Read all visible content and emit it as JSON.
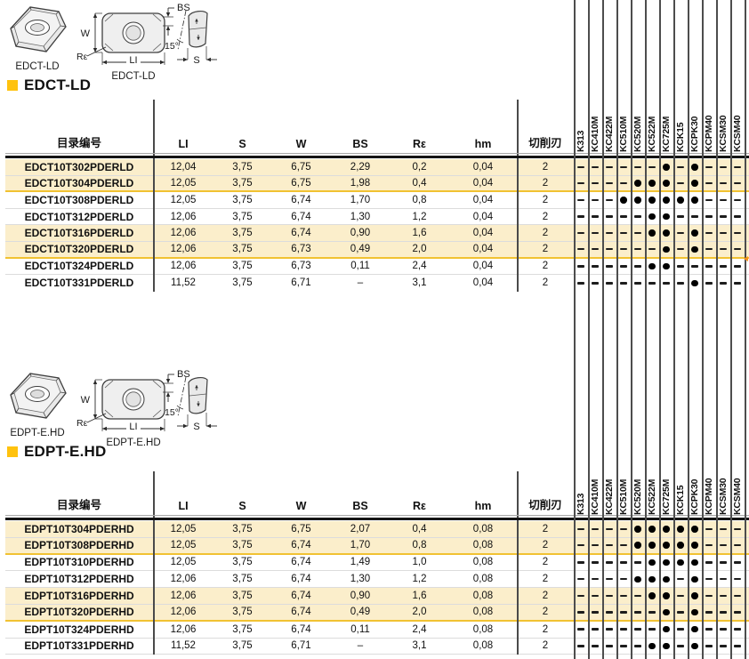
{
  "page": {
    "kind": "milling-insert-catalog-page"
  },
  "sections": [
    {
      "id": "edct-ld",
      "title": "EDCT-LD",
      "drawing": {
        "iso_caption": "EDCT-LD",
        "top_caption": "EDCT-LD",
        "labels": {
          "w": "W",
          "li": "LI",
          "re": "Rε",
          "bs": "BS",
          "s": "S",
          "angle": "15°"
        }
      },
      "table": {
        "columns": [
          "目录编号",
          "LI",
          "S",
          "W",
          "BS",
          "Rε",
          "hm",
          "切削刃"
        ],
        "grade_columns": [
          "K313",
          "KC410M",
          "KC422M",
          "KC510M",
          "KC520M",
          "KC522M",
          "KC725M",
          "KCK15",
          "KCPK30",
          "KCPM40",
          "KCSM30",
          "KCSM40"
        ],
        "legend": {
          "available": "dot",
          "not_available": "dash"
        },
        "rows": [
          {
            "catalog": "EDCT10T302PDERLD",
            "values": [
              "12,04",
              "3,75",
              "6,75",
              "2,29",
              "0,2",
              "0,04",
              "2"
            ],
            "grades": [
              0,
              0,
              0,
              0,
              0,
              0,
              1,
              0,
              1,
              0,
              0,
              0
            ],
            "highlight": true
          },
          {
            "catalog": "EDCT10T304PDERLD",
            "values": [
              "12,05",
              "3,75",
              "6,75",
              "1,98",
              "0,4",
              "0,04",
              "2"
            ],
            "grades": [
              0,
              0,
              0,
              0,
              1,
              1,
              1,
              0,
              1,
              0,
              0,
              0
            ],
            "highlight": true
          },
          {
            "catalog": "EDCT10T308PDERLD",
            "values": [
              "12,05",
              "3,75",
              "6,74",
              "1,70",
              "0,8",
              "0,04",
              "2"
            ],
            "grades": [
              0,
              0,
              0,
              1,
              1,
              1,
              1,
              1,
              1,
              0,
              0,
              0
            ],
            "highlight": false
          },
          {
            "catalog": "EDCT10T312PDERLD",
            "values": [
              "12,06",
              "3,75",
              "6,74",
              "1,30",
              "1,2",
              "0,04",
              "2"
            ],
            "grades": [
              0,
              0,
              0,
              0,
              0,
              1,
              1,
              0,
              0,
              0,
              0,
              0
            ],
            "highlight": false
          },
          {
            "catalog": "EDCT10T316PDERLD",
            "values": [
              "12,06",
              "3,75",
              "6,74",
              "0,90",
              "1,6",
              "0,04",
              "2"
            ],
            "grades": [
              0,
              0,
              0,
              0,
              0,
              1,
              1,
              0,
              1,
              0,
              0,
              0
            ],
            "highlight": true
          },
          {
            "catalog": "EDCT10T320PDERLD",
            "values": [
              "12,06",
              "3,75",
              "6,73",
              "0,49",
              "2,0",
              "0,04",
              "2"
            ],
            "grades": [
              0,
              0,
              0,
              0,
              0,
              0,
              1,
              0,
              1,
              0,
              0,
              0
            ],
            "highlight": true
          },
          {
            "catalog": "EDCT10T324PDERLD",
            "values": [
              "12,06",
              "3,75",
              "6,73",
              "0,11",
              "2,4",
              "0,04",
              "2"
            ],
            "grades": [
              0,
              0,
              0,
              0,
              0,
              1,
              1,
              0,
              0,
              0,
              0,
              0
            ],
            "highlight": false
          },
          {
            "catalog": "EDCT10T331PDERLD",
            "values": [
              "11,52",
              "3,75",
              "6,71",
              "–",
              "3,1",
              "0,04",
              "2"
            ],
            "grades": [
              0,
              0,
              0,
              0,
              0,
              0,
              0,
              0,
              1,
              0,
              0,
              0
            ],
            "highlight": false
          }
        ]
      }
    },
    {
      "id": "edpt-e-hd",
      "title": "EDPT-E.HD",
      "drawing": {
        "iso_caption": "EDPT-E.HD",
        "top_caption": "EDPT-E.HD",
        "labels": {
          "w": "W",
          "li": "LI",
          "re": "Rε",
          "bs": "BS",
          "s": "S",
          "angle": "15°"
        }
      },
      "table": {
        "columns": [
          "目录编号",
          "LI",
          "S",
          "W",
          "BS",
          "Rε",
          "hm",
          "切削刃"
        ],
        "grade_columns": [
          "K313",
          "KC410M",
          "KC422M",
          "KC510M",
          "KC520M",
          "KC522M",
          "KC725M",
          "KCK15",
          "KCPK30",
          "KCPM40",
          "KCSM30",
          "KCSM40"
        ],
        "legend": {
          "available": "dot",
          "not_available": "dash"
        },
        "rows": [
          {
            "catalog": "EDPT10T304PDERHD",
            "values": [
              "12,05",
              "3,75",
              "6,75",
              "2,07",
              "0,4",
              "0,08",
              "2"
            ],
            "grades": [
              0,
              0,
              0,
              0,
              1,
              1,
              1,
              1,
              1,
              0,
              0,
              0
            ],
            "highlight": true
          },
          {
            "catalog": "EDPT10T308PDERHD",
            "values": [
              "12,05",
              "3,75",
              "6,74",
              "1,70",
              "0,8",
              "0,08",
              "2"
            ],
            "grades": [
              0,
              0,
              0,
              0,
              1,
              1,
              1,
              1,
              1,
              0,
              0,
              0
            ],
            "highlight": true
          },
          {
            "catalog": "EDPT10T310PDERHD",
            "values": [
              "12,05",
              "3,75",
              "6,74",
              "1,49",
              "1,0",
              "0,08",
              "2"
            ],
            "grades": [
              0,
              0,
              0,
              0,
              0,
              1,
              1,
              1,
              1,
              0,
              0,
              0
            ],
            "highlight": false
          },
          {
            "catalog": "EDPT10T312PDERHD",
            "values": [
              "12,06",
              "3,75",
              "6,74",
              "1,30",
              "1,2",
              "0,08",
              "2"
            ],
            "grades": [
              0,
              0,
              0,
              0,
              1,
              1,
              1,
              0,
              1,
              0,
              0,
              0
            ],
            "highlight": false
          },
          {
            "catalog": "EDPT10T316PDERHD",
            "values": [
              "12,06",
              "3,75",
              "6,74",
              "0,90",
              "1,6",
              "0,08",
              "2"
            ],
            "grades": [
              0,
              0,
              0,
              0,
              0,
              1,
              1,
              0,
              1,
              0,
              0,
              0
            ],
            "highlight": true
          },
          {
            "catalog": "EDPT10T320PDERHD",
            "values": [
              "12,06",
              "3,75",
              "6,74",
              "0,49",
              "2,0",
              "0,08",
              "2"
            ],
            "grades": [
              0,
              0,
              0,
              0,
              0,
              0,
              1,
              0,
              1,
              0,
              0,
              0
            ],
            "highlight": true
          },
          {
            "catalog": "EDPT10T324PDERHD",
            "values": [
              "12,06",
              "3,75",
              "6,74",
              "0,11",
              "2,4",
              "0,08",
              "2"
            ],
            "grades": [
              0,
              0,
              0,
              0,
              0,
              0,
              1,
              0,
              1,
              0,
              0,
              0
            ],
            "highlight": false
          },
          {
            "catalog": "EDPT10T331PDERHD",
            "values": [
              "11,52",
              "3,75",
              "6,71",
              "–",
              "3,1",
              "0,08",
              "2"
            ],
            "grades": [
              0,
              0,
              0,
              0,
              0,
              1,
              1,
              0,
              1,
              0,
              0,
              0
            ],
            "highlight": false
          }
        ]
      }
    }
  ]
}
